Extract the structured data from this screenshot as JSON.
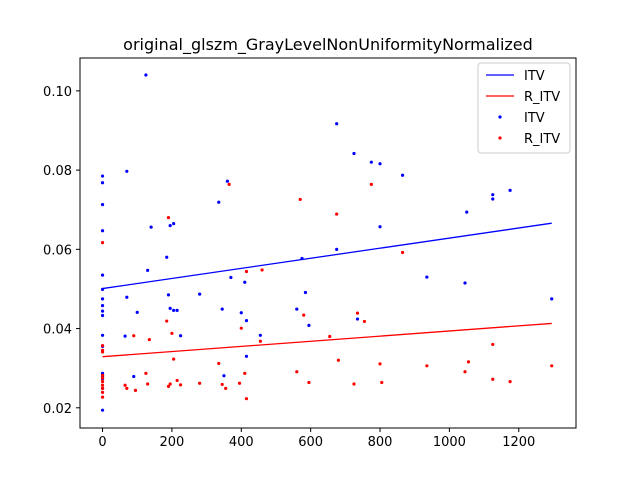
{
  "chart_data": {
    "type": "scatter",
    "title": "original_glszm_GrayLevelNonUniformityNormalized",
    "xlabel": "",
    "ylabel": "",
    "xlim": [
      -65,
      1365
    ],
    "ylim": [
      0.0149,
      0.1083
    ],
    "xticks": [
      0,
      200,
      400,
      600,
      800,
      1000,
      1200
    ],
    "yticks": [
      0.02,
      0.04,
      0.06,
      0.08,
      0.1
    ],
    "ytick_labels": [
      "0.02",
      "0.04",
      "0.06",
      "0.08",
      "0.10"
    ],
    "grid": false,
    "legend_position": "upper-right",
    "legend": [
      {
        "label": "ITV",
        "kind": "line",
        "color": "#0000ff"
      },
      {
        "label": "R_ITV",
        "kind": "line",
        "color": "#ff0000"
      },
      {
        "label": "ITV",
        "kind": "marker",
        "color": "#0000ff"
      },
      {
        "label": "R_ITV",
        "kind": "marker",
        "color": "#ff0000"
      }
    ],
    "fit_lines": [
      {
        "series": "ITV",
        "color": "#0000ff",
        "x": [
          0,
          1295
        ],
        "y": [
          0.0501,
          0.0666
        ]
      },
      {
        "series": "R_ITV",
        "color": "#ff0000",
        "x": [
          0,
          1295
        ],
        "y": [
          0.0329,
          0.0413
        ]
      }
    ],
    "series": [
      {
        "name": "ITV",
        "color": "#0000ff",
        "points": [
          [
            0,
            0.0785
          ],
          [
            0,
            0.0768
          ],
          [
            0,
            0.0713
          ],
          [
            0,
            0.0647
          ],
          [
            0,
            0.0535
          ],
          [
            0,
            0.0499
          ],
          [
            0,
            0.0475
          ],
          [
            0,
            0.0458
          ],
          [
            0,
            0.0444
          ],
          [
            0,
            0.0433
          ],
          [
            0,
            0.0383
          ],
          [
            0,
            0.0355
          ],
          [
            0,
            0.0287
          ],
          [
            0,
            0.0283
          ],
          [
            0,
            0.0279
          ],
          [
            0,
            0.0273
          ],
          [
            0,
            0.0249
          ],
          [
            0,
            0.0194
          ],
          [
            70,
            0.0797
          ],
          [
            70,
            0.0479
          ],
          [
            65,
            0.0381
          ],
          [
            90,
            0.0279
          ],
          [
            100,
            0.0441
          ],
          [
            125,
            0.104
          ],
          [
            130,
            0.0547
          ],
          [
            140,
            0.0656
          ],
          [
            185,
            0.058
          ],
          [
            190,
            0.0485
          ],
          [
            195,
            0.066
          ],
          [
            195,
            0.0451
          ],
          [
            205,
            0.0665
          ],
          [
            205,
            0.0446
          ],
          [
            215,
            0.0446
          ],
          [
            225,
            0.0382
          ],
          [
            280,
            0.0487
          ],
          [
            335,
            0.0719
          ],
          [
            345,
            0.0449
          ],
          [
            350,
            0.0281
          ],
          [
            360,
            0.0772
          ],
          [
            370,
            0.0529
          ],
          [
            400,
            0.044
          ],
          [
            410,
            0.0517
          ],
          [
            415,
            0.042
          ],
          [
            415,
            0.033
          ],
          [
            455,
            0.0383
          ],
          [
            560,
            0.0449
          ],
          [
            575,
            0.0577
          ],
          [
            585,
            0.0491
          ],
          [
            595,
            0.0408
          ],
          [
            675,
            0.0917
          ],
          [
            675,
            0.06
          ],
          [
            725,
            0.0842
          ],
          [
            735,
            0.0424
          ],
          [
            775,
            0.082
          ],
          [
            800,
            0.0816
          ],
          [
            800,
            0.0657
          ],
          [
            865,
            0.0787
          ],
          [
            935,
            0.053
          ],
          [
            1045,
            0.0515
          ],
          [
            1050,
            0.0694
          ],
          [
            1125,
            0.0738
          ],
          [
            1125,
            0.0727
          ],
          [
            1175,
            0.0749
          ],
          [
            1295,
            0.0475
          ]
        ]
      },
      {
        "name": "R_ITV",
        "color": "#ff0000",
        "points": [
          [
            0,
            0.0617
          ],
          [
            0,
            0.0357
          ],
          [
            0,
            0.0345
          ],
          [
            0,
            0.0341
          ],
          [
            0,
            0.0282
          ],
          [
            0,
            0.0275
          ],
          [
            0,
            0.0266
          ],
          [
            0,
            0.0257
          ],
          [
            0,
            0.0249
          ],
          [
            0,
            0.0239
          ],
          [
            0,
            0.0227
          ],
          [
            65,
            0.0257
          ],
          [
            70,
            0.0249
          ],
          [
            90,
            0.0382
          ],
          [
            95,
            0.0244
          ],
          [
            125,
            0.0287
          ],
          [
            130,
            0.026
          ],
          [
            135,
            0.0372
          ],
          [
            185,
            0.0419
          ],
          [
            190,
            0.068
          ],
          [
            190,
            0.0254
          ],
          [
            195,
            0.026
          ],
          [
            200,
            0.0388
          ],
          [
            205,
            0.0323
          ],
          [
            215,
            0.0269
          ],
          [
            225,
            0.0258
          ],
          [
            280,
            0.0262
          ],
          [
            335,
            0.0312
          ],
          [
            345,
            0.0259
          ],
          [
            355,
            0.0249
          ],
          [
            365,
            0.0764
          ],
          [
            395,
            0.0262
          ],
          [
            400,
            0.0401
          ],
          [
            410,
            0.0287
          ],
          [
            415,
            0.0544
          ],
          [
            415,
            0.0223
          ],
          [
            455,
            0.0368
          ],
          [
            460,
            0.0548
          ],
          [
            560,
            0.0291
          ],
          [
            570,
            0.0726
          ],
          [
            580,
            0.0434
          ],
          [
            595,
            0.0264
          ],
          [
            655,
            0.038
          ],
          [
            675,
            0.0689
          ],
          [
            680,
            0.032
          ],
          [
            725,
            0.026
          ],
          [
            735,
            0.0439
          ],
          [
            755,
            0.0418
          ],
          [
            775,
            0.0764
          ],
          [
            800,
            0.0311
          ],
          [
            805,
            0.0264
          ],
          [
            865,
            0.0592
          ],
          [
            935,
            0.0306
          ],
          [
            1045,
            0.0291
          ],
          [
            1055,
            0.0316
          ],
          [
            1125,
            0.0272
          ],
          [
            1125,
            0.036
          ],
          [
            1175,
            0.0266
          ],
          [
            1295,
            0.0306
          ]
        ]
      }
    ]
  }
}
